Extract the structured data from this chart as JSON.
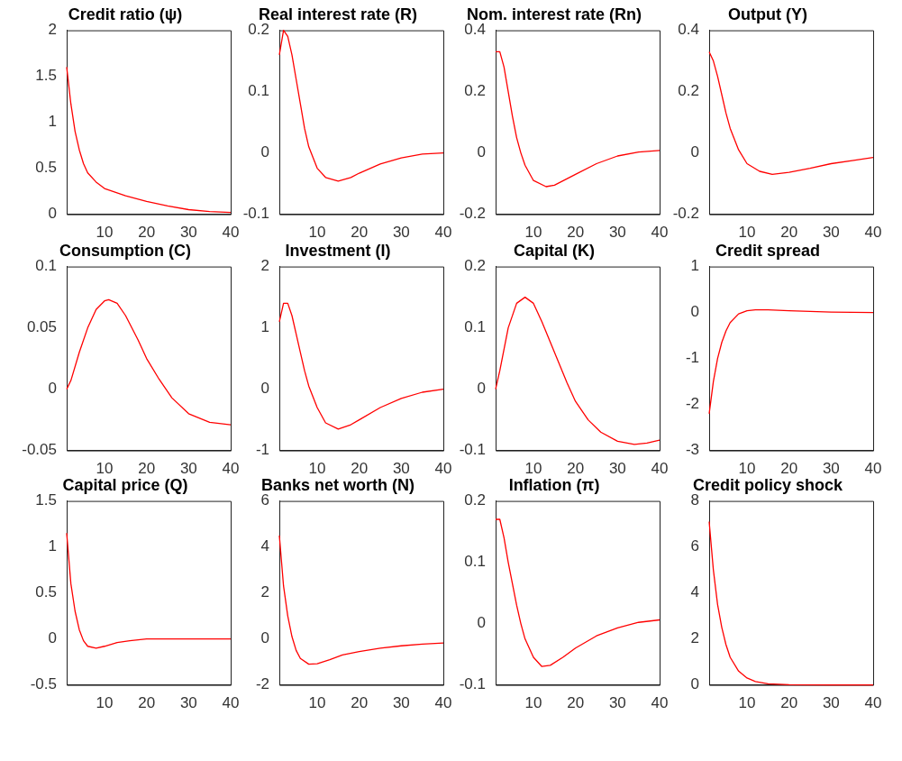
{
  "chart_data": [
    {
      "type": "line",
      "title": "Credit ratio (ψ)",
      "color": "#ff0000",
      "x": [
        1,
        2,
        3,
        4,
        5,
        6,
        8,
        10,
        15,
        20,
        25,
        30,
        35,
        40
      ],
      "values": [
        1.6,
        1.2,
        0.9,
        0.7,
        0.55,
        0.45,
        0.35,
        0.28,
        0.2,
        0.14,
        0.09,
        0.05,
        0.03,
        0.02
      ],
      "xlim": [
        1,
        40
      ],
      "xticks": [
        10,
        20,
        30,
        40
      ],
      "ylim": [
        0,
        2
      ],
      "yticks": [
        0,
        0.5,
        1,
        1.5,
        2
      ],
      "grid": false
    },
    {
      "type": "line",
      "title": "Real interest rate (R)",
      "color": "#ff0000",
      "x": [
        1,
        2,
        3,
        4,
        5,
        6,
        7,
        8,
        10,
        12,
        15,
        18,
        20,
        25,
        30,
        35,
        40
      ],
      "values": [
        0.16,
        0.2,
        0.19,
        0.16,
        0.12,
        0.08,
        0.04,
        0.01,
        -0.025,
        -0.04,
        -0.046,
        -0.04,
        -0.033,
        -0.018,
        -0.008,
        -0.002,
        0
      ],
      "xlim": [
        1,
        40
      ],
      "xticks": [
        10,
        20,
        30,
        40
      ],
      "ylim": [
        -0.1,
        0.2
      ],
      "yticks": [
        -0.1,
        0,
        0.1,
        0.2
      ],
      "grid": false
    },
    {
      "type": "line",
      "title": "Nom. interest rate (Rn)",
      "color": "#ff0000",
      "x": [
        1,
        2,
        3,
        4,
        5,
        6,
        7,
        8,
        10,
        13,
        15,
        20,
        25,
        30,
        35,
        40
      ],
      "values": [
        0.33,
        0.33,
        0.28,
        0.2,
        0.12,
        0.05,
        0,
        -0.04,
        -0.09,
        -0.11,
        -0.105,
        -0.07,
        -0.035,
        -0.01,
        0.003,
        0.008
      ],
      "xlim": [
        1,
        40
      ],
      "xticks": [
        10,
        20,
        30,
        40
      ],
      "ylim": [
        -0.2,
        0.4
      ],
      "yticks": [
        -0.2,
        0,
        0.2,
        0.4
      ],
      "grid": false
    },
    {
      "type": "line",
      "title": "Output (Y)",
      "color": "#ff0000",
      "x": [
        1,
        2,
        3,
        4,
        5,
        6,
        8,
        10,
        13,
        16,
        20,
        25,
        30,
        35,
        40
      ],
      "values": [
        0.33,
        0.3,
        0.25,
        0.19,
        0.13,
        0.08,
        0.01,
        -0.035,
        -0.06,
        -0.07,
        -0.063,
        -0.05,
        -0.035,
        -0.025,
        -0.015
      ],
      "xlim": [
        1,
        40
      ],
      "xticks": [
        10,
        20,
        30,
        40
      ],
      "ylim": [
        -0.2,
        0.4
      ],
      "yticks": [
        -0.2,
        0,
        0.2,
        0.4
      ],
      "grid": false
    },
    {
      "type": "line",
      "title": "Consumption (C)",
      "color": "#ff0000",
      "x": [
        1,
        2,
        4,
        6,
        8,
        10,
        11,
        13,
        15,
        18,
        20,
        23,
        26,
        30,
        35,
        40
      ],
      "values": [
        0,
        0.007,
        0.03,
        0.05,
        0.065,
        0.072,
        0.073,
        0.07,
        0.06,
        0.04,
        0.025,
        0.008,
        -0.007,
        -0.02,
        -0.027,
        -0.029
      ],
      "xlim": [
        1,
        40
      ],
      "xticks": [
        10,
        20,
        30,
        40
      ],
      "ylim": [
        -0.05,
        0.1
      ],
      "yticks": [
        -0.05,
        0,
        0.05,
        0.1
      ],
      "grid": false
    },
    {
      "type": "line",
      "title": "Investment (I)",
      "color": "#ff0000",
      "x": [
        1,
        2,
        3,
        4,
        5,
        6,
        7,
        8,
        10,
        12,
        15,
        18,
        20,
        25,
        30,
        35,
        40
      ],
      "values": [
        1.1,
        1.4,
        1.4,
        1.2,
        0.9,
        0.6,
        0.3,
        0.05,
        -0.3,
        -0.55,
        -0.65,
        -0.58,
        -0.5,
        -0.3,
        -0.15,
        -0.05,
        0
      ],
      "xlim": [
        1,
        40
      ],
      "xticks": [
        10,
        20,
        30,
        40
      ],
      "ylim": [
        -1,
        2
      ],
      "yticks": [
        -1,
        0,
        1,
        2
      ],
      "grid": false
    },
    {
      "type": "line",
      "title": "Capital (K)",
      "color": "#ff0000",
      "x": [
        1,
        2,
        4,
        6,
        8,
        10,
        12,
        15,
        18,
        20,
        23,
        26,
        30,
        34,
        37,
        40
      ],
      "values": [
        0,
        0.03,
        0.1,
        0.14,
        0.15,
        0.14,
        0.11,
        0.06,
        0.01,
        -0.02,
        -0.05,
        -0.07,
        -0.085,
        -0.09,
        -0.088,
        -0.083
      ],
      "xlim": [
        1,
        40
      ],
      "xticks": [
        10,
        20,
        30,
        40
      ],
      "ylim": [
        -0.1,
        0.2
      ],
      "yticks": [
        -0.1,
        0,
        0.1,
        0.2
      ],
      "grid": false
    },
    {
      "type": "line",
      "title": "Credit spread",
      "color": "#ff0000",
      "x": [
        1,
        2,
        3,
        4,
        5,
        6,
        8,
        10,
        12,
        15,
        20,
        30,
        40
      ],
      "values": [
        -2.2,
        -1.5,
        -1,
        -0.65,
        -0.4,
        -0.22,
        -0.03,
        0.04,
        0.06,
        0.06,
        0.04,
        0.01,
        0
      ],
      "xlim": [
        1,
        40
      ],
      "xticks": [
        10,
        20,
        30,
        40
      ],
      "ylim": [
        -3,
        1
      ],
      "yticks": [
        -3,
        -2,
        -1,
        0,
        1
      ],
      "grid": false
    },
    {
      "type": "line",
      "title": "Capital price (Q)",
      "color": "#ff0000",
      "x": [
        1,
        2,
        3,
        4,
        5,
        6,
        8,
        10,
        13,
        16,
        20,
        25,
        30,
        40
      ],
      "values": [
        1.15,
        0.6,
        0.3,
        0.1,
        -0.02,
        -0.08,
        -0.1,
        -0.08,
        -0.04,
        -0.02,
        0,
        0,
        0,
        0
      ],
      "xlim": [
        1,
        40
      ],
      "xticks": [
        10,
        20,
        30,
        40
      ],
      "ylim": [
        -0.5,
        1.5
      ],
      "yticks": [
        -0.5,
        0,
        0.5,
        1,
        1.5
      ],
      "grid": false
    },
    {
      "type": "line",
      "title": "Banks net worth (N)",
      "color": "#ff0000",
      "x": [
        1,
        2,
        3,
        4,
        5,
        6,
        8,
        10,
        13,
        16,
        20,
        25,
        30,
        35,
        40
      ],
      "values": [
        4.5,
        2.3,
        1,
        0.1,
        -0.5,
        -0.85,
        -1.1,
        -1.08,
        -0.9,
        -0.7,
        -0.55,
        -0.4,
        -0.3,
        -0.23,
        -0.18
      ],
      "xlim": [
        1,
        40
      ],
      "xticks": [
        10,
        20,
        30,
        40
      ],
      "ylim": [
        -2,
        6
      ],
      "yticks": [
        -2,
        0,
        2,
        4,
        6
      ],
      "grid": false
    },
    {
      "type": "line",
      "title": "Inflation (π)",
      "color": "#ff0000",
      "x": [
        1,
        2,
        3,
        4,
        5,
        6,
        7,
        8,
        10,
        12,
        14,
        17,
        20,
        25,
        30,
        35,
        40
      ],
      "values": [
        0.17,
        0.17,
        0.14,
        0.1,
        0.065,
        0.03,
        0,
        -0.025,
        -0.055,
        -0.07,
        -0.068,
        -0.055,
        -0.04,
        -0.02,
        -0.007,
        0.002,
        0.006
      ],
      "xlim": [
        1,
        40
      ],
      "xticks": [
        10,
        20,
        30,
        40
      ],
      "ylim": [
        -0.1,
        0.2
      ],
      "yticks": [
        -0.1,
        0,
        0.1,
        0.2
      ],
      "grid": false
    },
    {
      "type": "line",
      "title": "Credit policy shock",
      "color": "#ff0000",
      "x": [
        1,
        2,
        3,
        4,
        5,
        6,
        8,
        10,
        12,
        15,
        20,
        30,
        40
      ],
      "values": [
        7.1,
        5,
        3.5,
        2.5,
        1.75,
        1.2,
        0.6,
        0.3,
        0.15,
        0.05,
        0.01,
        0,
        0
      ],
      "xlim": [
        1,
        40
      ],
      "xticks": [
        10,
        20,
        30,
        40
      ],
      "ylim": [
        0,
        8
      ],
      "yticks": [
        0,
        2,
        4,
        6,
        8
      ],
      "grid": false
    }
  ]
}
